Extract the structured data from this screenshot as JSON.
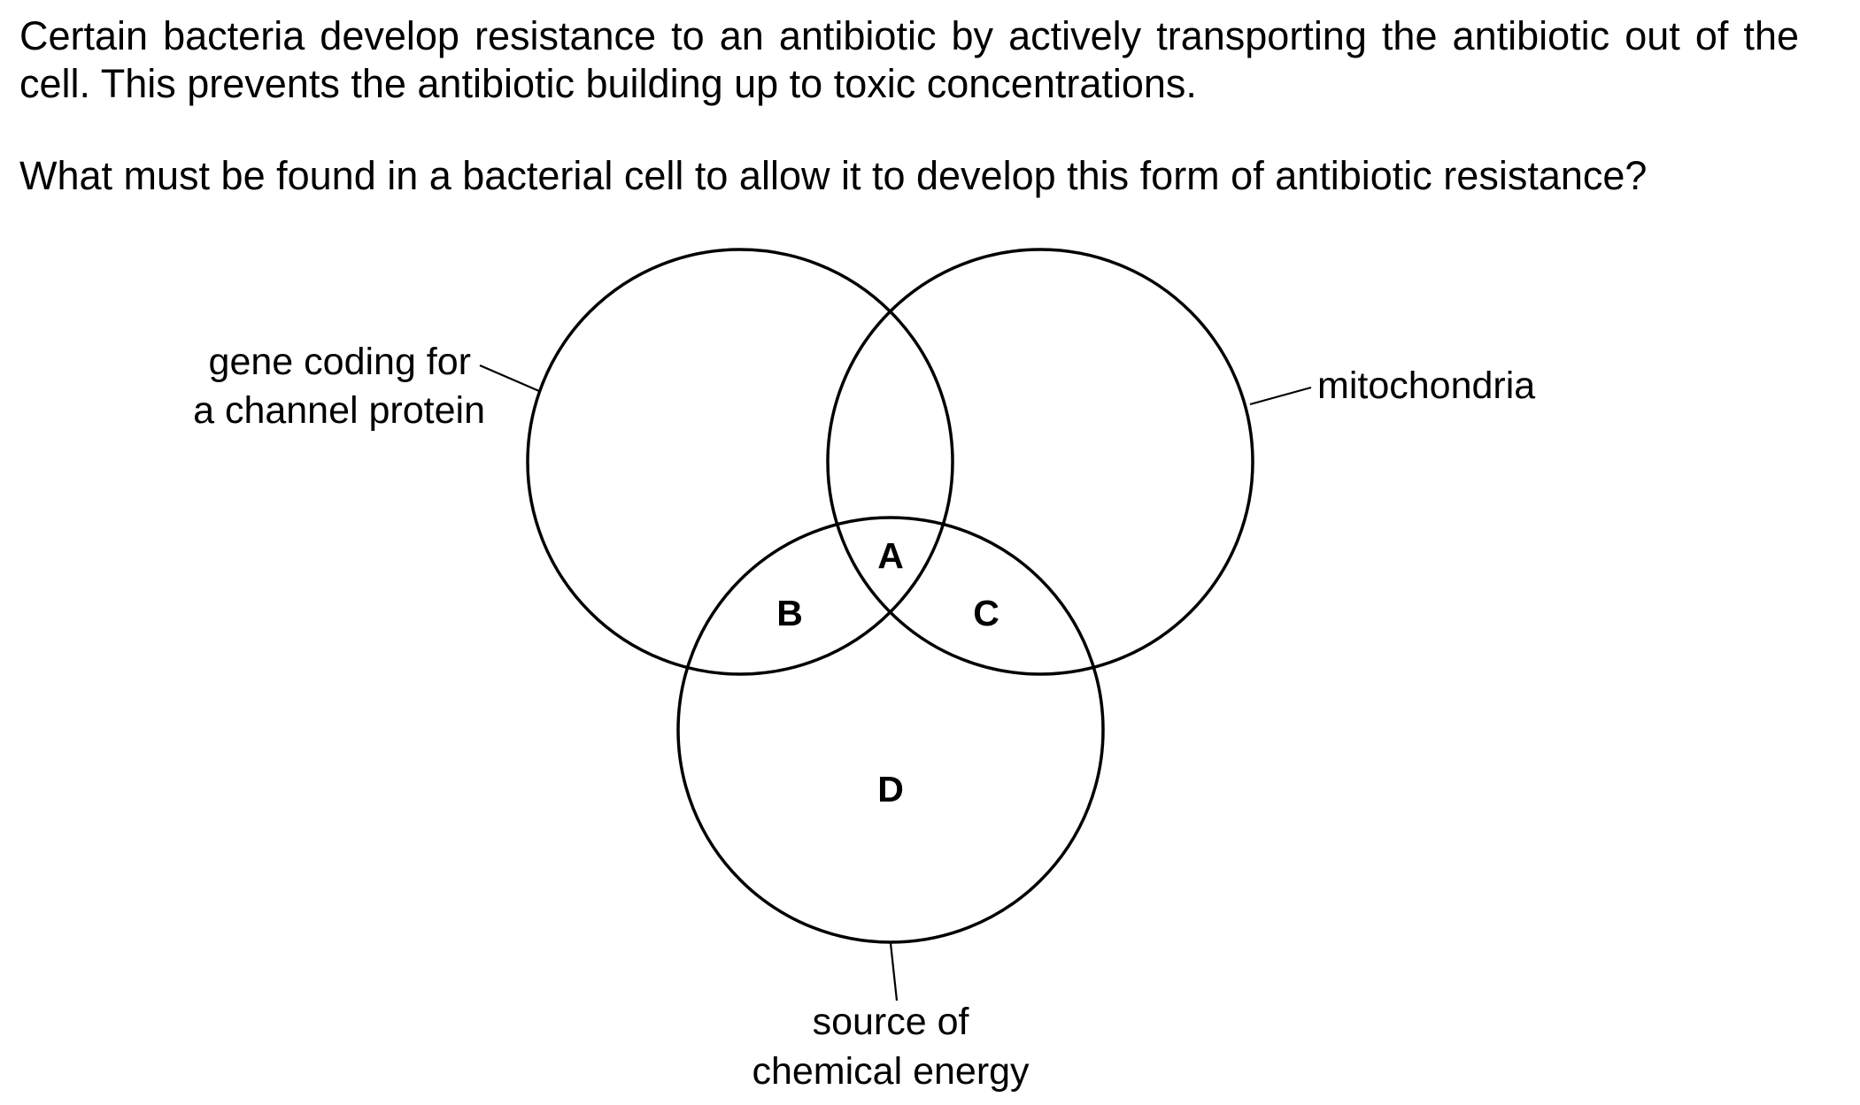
{
  "question": {
    "stem": "Certain bacteria develop resistance to an antibiotic by actively transporting the antibiotic out of the cell. This prevents the antibiotic building up to toxic concentrations.",
    "prompt": "What must be found in a bacterial cell to allow it to develop this form of antibiotic resistance?"
  },
  "diagram": {
    "sets": {
      "gene_channel_line1": "gene coding for",
      "gene_channel_line2": "a channel protein",
      "mitochondria": "mitochondria",
      "energy_line1": "source of",
      "energy_line2": "chemical energy"
    },
    "regions": {
      "a": "A",
      "b": "B",
      "c": "C",
      "d": "D"
    }
  }
}
